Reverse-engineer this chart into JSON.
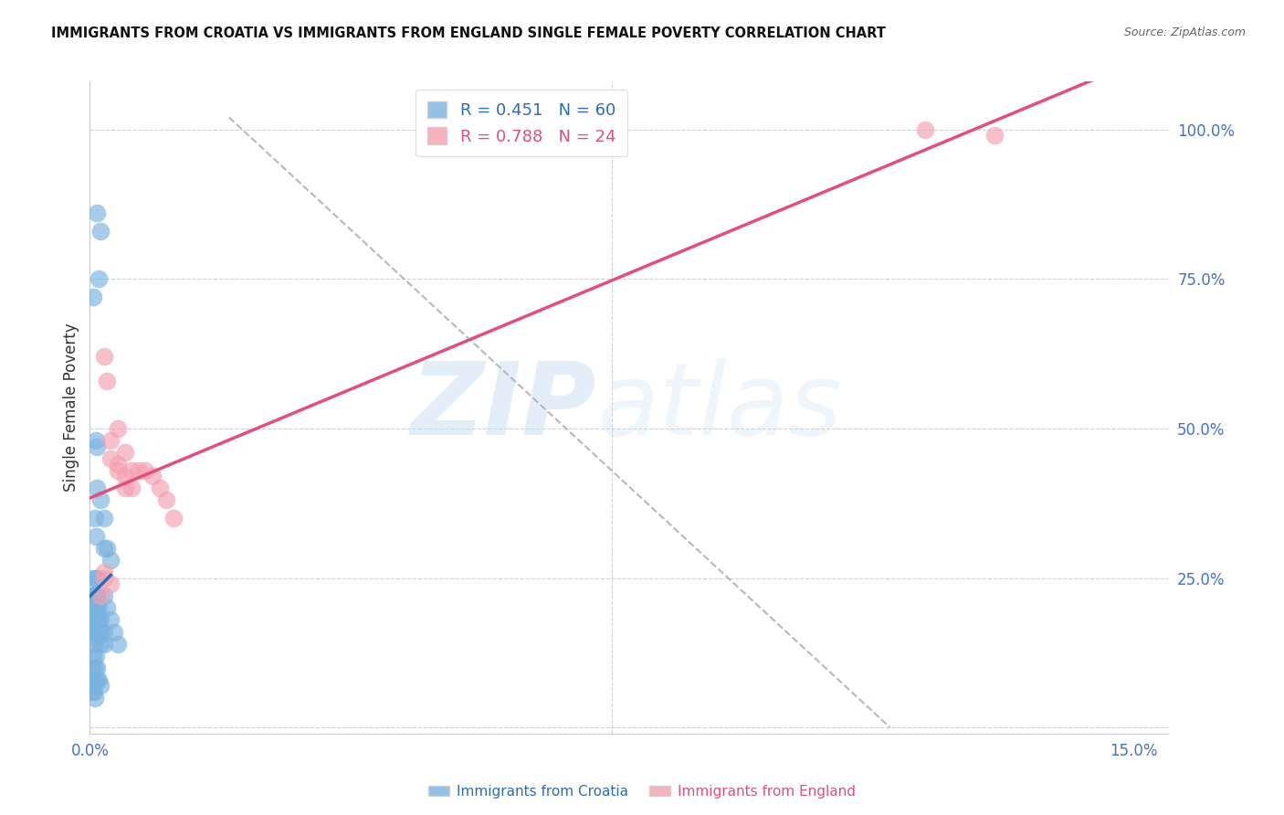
{
  "title": "IMMIGRANTS FROM CROATIA VS IMMIGRANTS FROM ENGLAND SINGLE FEMALE POVERTY CORRELATION CHART",
  "source": "Source: ZipAtlas.com",
  "ylabel": "Single Female Poverty",
  "legend_label1": "Immigrants from Croatia",
  "legend_label2": "Immigrants from England",
  "legend_r1": "R = 0.451   N = 60",
  "legend_r2": "R = 0.788   N = 24",
  "color_croatia": "#7ab3e0",
  "color_england": "#f4a0b0",
  "color_trendline_croatia": "#2e6db4",
  "color_trendline_england": "#e0507a",
  "color_axis_labels": "#4472c4",
  "xlim": [
    0.0,
    0.155
  ],
  "ylim": [
    -0.01,
    1.08
  ],
  "croatia_x": [
    0.001,
    0.0015,
    0.002,
    0.0008,
    0.001,
    0.0012,
    0.0005,
    0.0007,
    0.0009,
    0.001,
    0.0008,
    0.0006,
    0.0005,
    0.0004,
    0.0003,
    0.0005,
    0.0007,
    0.001,
    0.0012,
    0.0015,
    0.002,
    0.0025,
    0.003,
    0.0035,
    0.004,
    0.001,
    0.0015,
    0.002,
    0.0025,
    0.003,
    0.0005,
    0.0008,
    0.001,
    0.0012,
    0.0015,
    0.002,
    0.0008,
    0.001,
    0.0012,
    0.0015,
    0.0002,
    0.0003,
    0.0004,
    0.0005,
    0.0006,
    0.0003,
    0.0004,
    0.0005,
    0.0006,
    0.0007,
    0.0008,
    0.001,
    0.0012,
    0.0015,
    0.002,
    0.0005,
    0.0007,
    0.001,
    0.0005,
    0.0003
  ],
  "croatia_y": [
    0.86,
    0.83,
    0.3,
    0.48,
    0.47,
    0.75,
    0.72,
    0.35,
    0.32,
    0.25,
    0.22,
    0.2,
    0.18,
    0.16,
    0.15,
    0.22,
    0.2,
    0.18,
    0.16,
    0.14,
    0.22,
    0.2,
    0.18,
    0.16,
    0.14,
    0.4,
    0.38,
    0.35,
    0.3,
    0.28,
    0.25,
    0.22,
    0.2,
    0.18,
    0.16,
    0.14,
    0.12,
    0.1,
    0.08,
    0.07,
    0.22,
    0.2,
    0.18,
    0.16,
    0.14,
    0.1,
    0.08,
    0.07,
    0.06,
    0.05,
    0.25,
    0.22,
    0.2,
    0.18,
    0.16,
    0.12,
    0.1,
    0.08,
    0.07,
    0.06
  ],
  "england_x": [
    0.002,
    0.0025,
    0.004,
    0.005,
    0.006,
    0.007,
    0.008,
    0.009,
    0.01,
    0.011,
    0.012,
    0.003,
    0.004,
    0.005,
    0.006,
    0.003,
    0.004,
    0.005,
    0.0015,
    0.002,
    0.12,
    0.13,
    0.002,
    0.003
  ],
  "england_y": [
    0.62,
    0.58,
    0.5,
    0.46,
    0.43,
    0.43,
    0.43,
    0.42,
    0.4,
    0.38,
    0.35,
    0.45,
    0.43,
    0.42,
    0.4,
    0.48,
    0.44,
    0.4,
    0.22,
    0.25,
    1.0,
    0.99,
    0.26,
    0.24
  ]
}
